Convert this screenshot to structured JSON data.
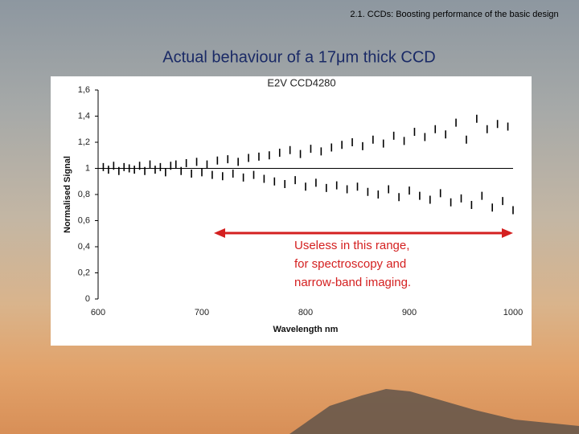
{
  "header": "2.1. CCDs: Boosting performance of the basic design",
  "slide_title": "Actual behaviour of a 17μm thick CCD",
  "chart_data": {
    "type": "scatter",
    "title": "E2V CCD4280",
    "x_label": "Wavelength nm",
    "y_label": "Normalised Signal",
    "annotation": [
      "Useless in this range,",
      "for spectroscopy and",
      "narrow-band imaging."
    ],
    "color": "#000000",
    "reference_line": 1,
    "xlim": [
      600,
      1000
    ],
    "ylim": [
      0,
      1.6
    ],
    "xticks": [
      600,
      700,
      800,
      900,
      1000
    ],
    "yticks": [
      0,
      {
        "value": 0.2,
        "label": "0,2"
      },
      {
        "value": 0.4,
        "label": "0,4"
      },
      {
        "value": 0.6,
        "label": "0,6"
      },
      {
        "value": 0.8,
        "label": "0,8"
      },
      1,
      {
        "value": 1.2,
        "label": "1,2"
      },
      {
        "value": 1.4,
        "label": "1,4"
      },
      {
        "value": 1.6,
        "label": "1,6"
      }
    ],
    "x": [
      605,
      610,
      615,
      620,
      625,
      630,
      635,
      640,
      645,
      650,
      655,
      660,
      665,
      670,
      675,
      680,
      685,
      690,
      695,
      700,
      705,
      710,
      715,
      720,
      725,
      730,
      735,
      740,
      745,
      750,
      755,
      760,
      765,
      770,
      775,
      780,
      785,
      790,
      795,
      800,
      805,
      810,
      815,
      820,
      825,
      830,
      835,
      840,
      845,
      850,
      855,
      860,
      865,
      870,
      875,
      880,
      885,
      890,
      895,
      900,
      905,
      910,
      915,
      920,
      925,
      930,
      935,
      940,
      945,
      950,
      955,
      960,
      965,
      970,
      975,
      980,
      985,
      990,
      995,
      1000
    ],
    "values": [
      1.01,
      0.99,
      1.02,
      0.98,
      1.01,
      1,
      0.99,
      1.02,
      0.98,
      1.03,
      0.99,
      1.01,
      0.97,
      1.02,
      1.03,
      0.98,
      1.04,
      0.96,
      1.05,
      0.97,
      1.03,
      0.95,
      1.06,
      0.94,
      1.07,
      0.96,
      1.05,
      0.93,
      1.08,
      0.95,
      1.09,
      0.92,
      1.1,
      0.9,
      1.12,
      0.88,
      1.14,
      0.91,
      1.11,
      0.86,
      1.15,
      0.89,
      1.13,
      0.85,
      1.16,
      0.87,
      1.18,
      0.84,
      1.2,
      0.86,
      1.17,
      0.82,
      1.22,
      0.8,
      1.19,
      0.84,
      1.25,
      0.78,
      1.21,
      0.83,
      1.28,
      0.79,
      1.24,
      0.76,
      1.3,
      0.81,
      1.26,
      0.74,
      1.35,
      0.77,
      1.22,
      0.72,
      1.38,
      0.79,
      1.3,
      0.7,
      1.34,
      0.75,
      1.32,
      0.68
    ]
  }
}
